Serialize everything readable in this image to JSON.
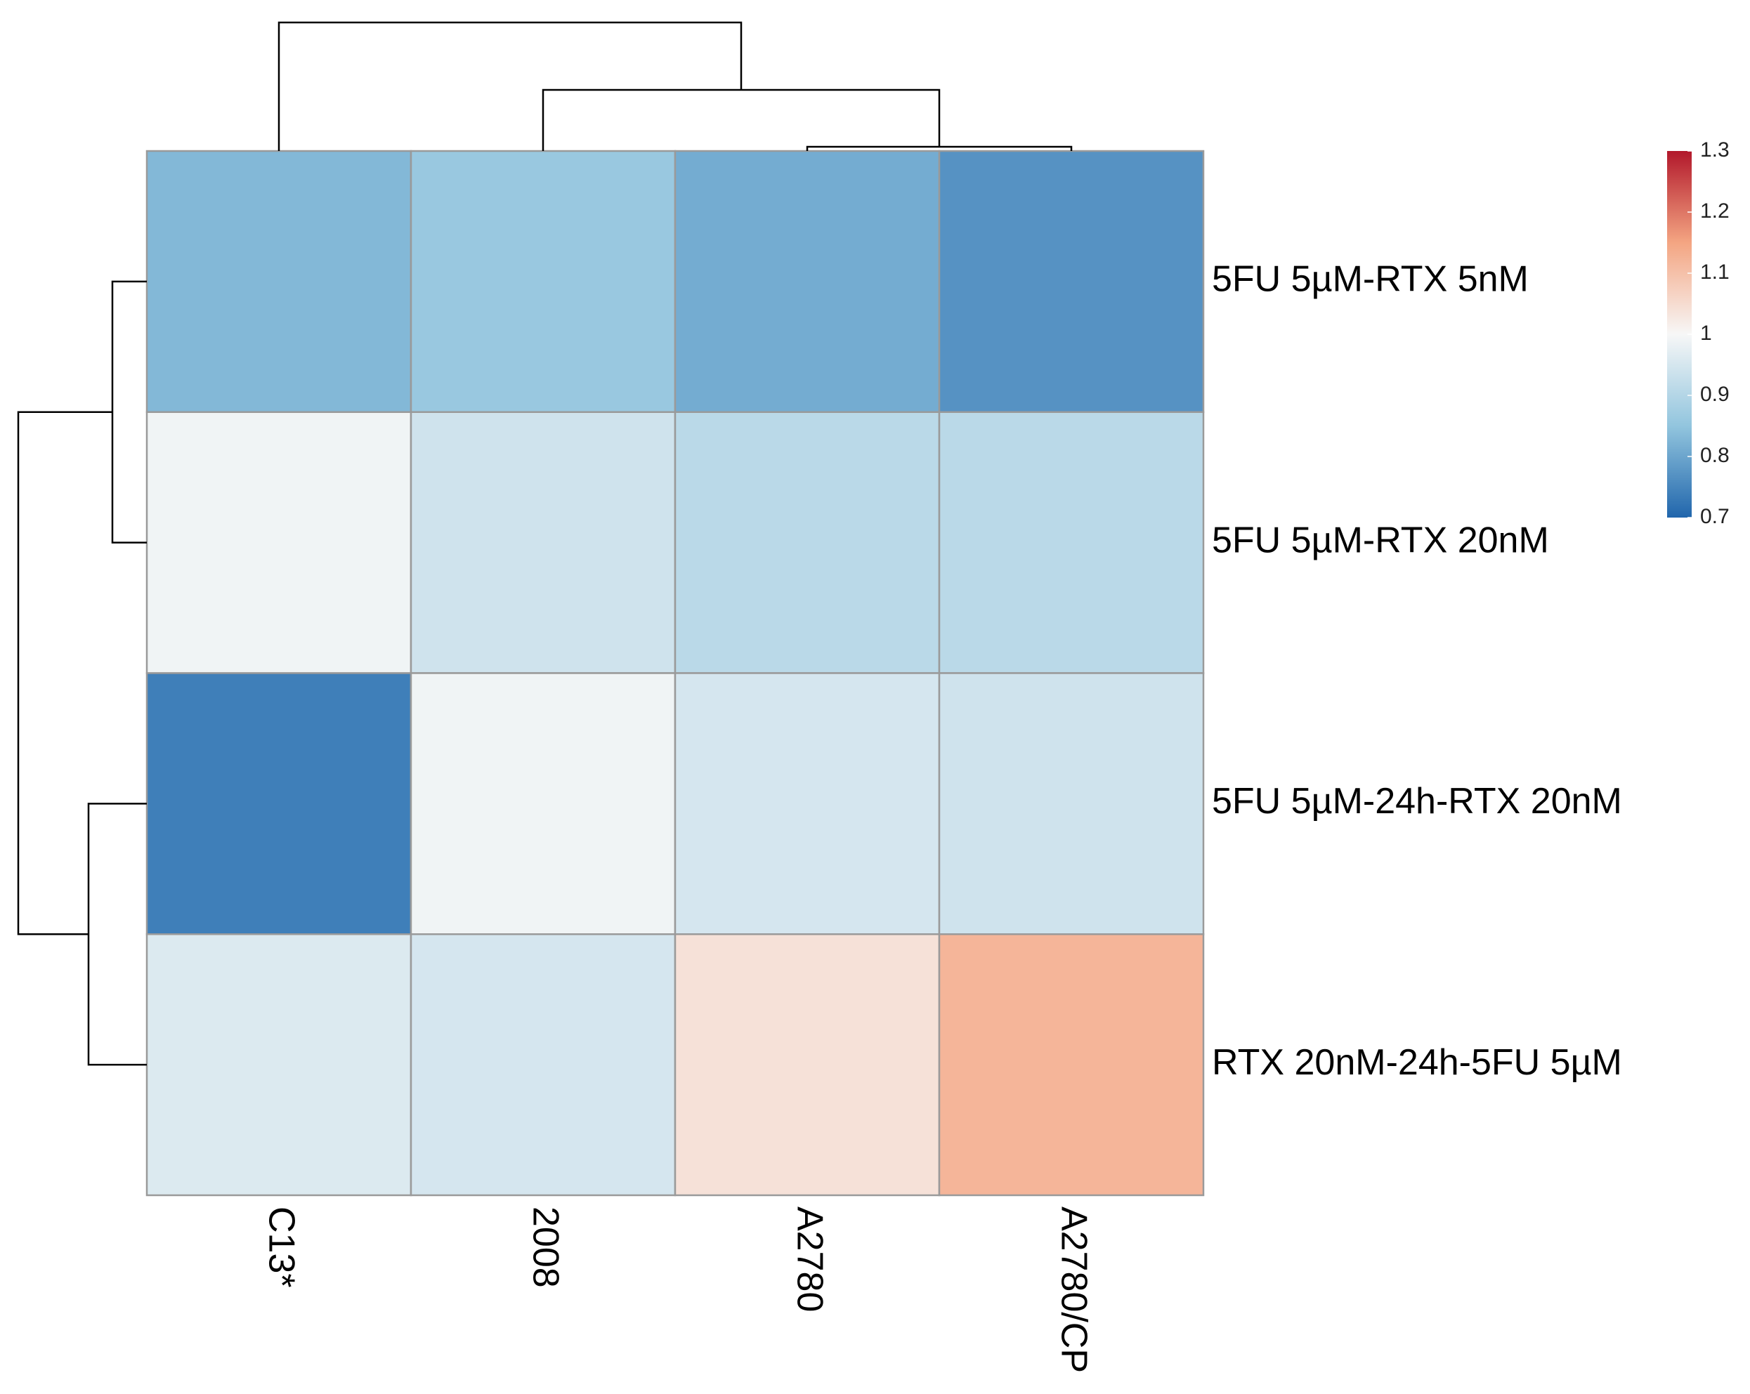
{
  "chart_data": {
    "type": "heatmap",
    "x_categories": [
      "C13*",
      "2008",
      "A2780",
      "A2780/CP"
    ],
    "y_categories": [
      "5FU 5µM-RTX 5nM",
      "5FU 5µM-RTX 20nM",
      "5FU 5µM-24h-RTX 20nM",
      "RTX 20nM-24h-5FU 5µM"
    ],
    "values": [
      [
        0.83,
        0.86,
        0.81,
        0.77
      ],
      [
        0.99,
        0.94,
        0.91,
        0.91
      ],
      [
        0.74,
        0.99,
        0.95,
        0.94
      ],
      [
        0.96,
        0.95,
        1.04,
        1.12
      ]
    ],
    "colors": [
      "#2166ac",
      "#92c5de",
      "#f7f7f7",
      "#f4a582",
      "#b2182b"
    ],
    "clim": [
      0.7,
      1.3
    ],
    "cticks": [
      0.7,
      0.8,
      0.9,
      1,
      1.1,
      1.2,
      1.3
    ]
  }
}
